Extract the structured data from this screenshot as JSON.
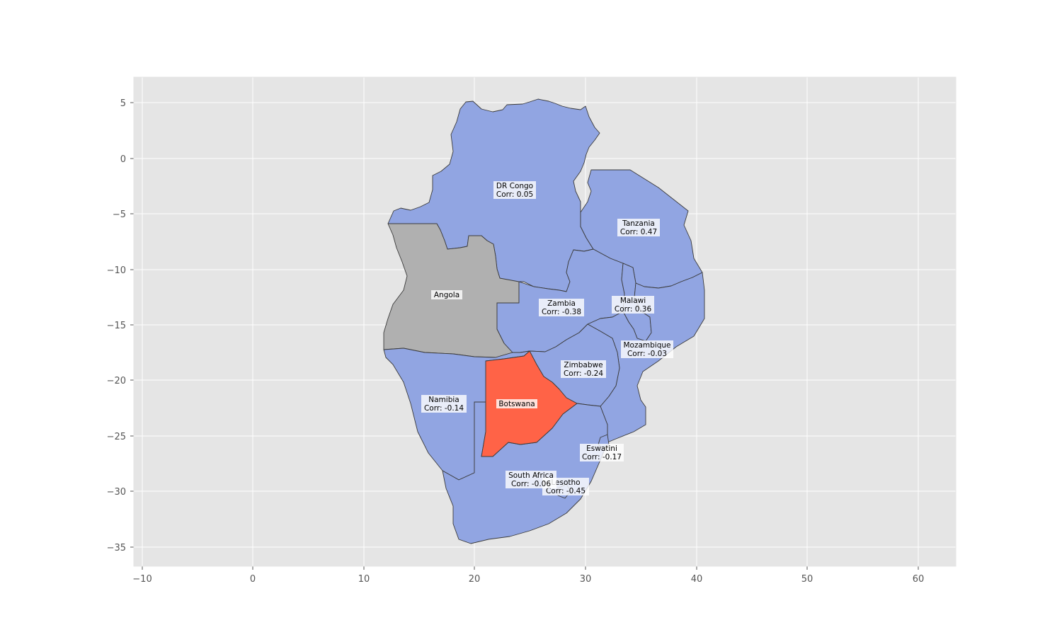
{
  "x_ticks": [
    "−10",
    "0",
    "10",
    "20",
    "30",
    "40",
    "50",
    "60"
  ],
  "y_ticks": [
    "5",
    "0",
    "−5",
    "−10",
    "−15",
    "−20",
    "−25",
    "−30",
    "−35"
  ],
  "colors": {
    "background": "#e5e5e5",
    "grid": "#ffffff",
    "positive_fill": "#91a5e2",
    "no_data_fill": "#b0b0b0",
    "selected_fill": "#ff6347",
    "label_box": "#ffffff"
  },
  "selected_country": "Botswana",
  "countries": [
    {
      "name": "DR Congo",
      "corr": "Corr: 0.05",
      "status": "data"
    },
    {
      "name": "Tanzania",
      "corr": "Corr: 0.47",
      "status": "data"
    },
    {
      "name": "Angola",
      "corr": "",
      "status": "no-data"
    },
    {
      "name": "Zambia",
      "corr": "Corr: -0.38",
      "status": "data"
    },
    {
      "name": "Malawi",
      "corr": "Corr: 0.36",
      "status": "data"
    },
    {
      "name": "Mozambique",
      "corr": "Corr: -0.03",
      "status": "data"
    },
    {
      "name": "Zimbabwe",
      "corr": "Corr: -0.24",
      "status": "data"
    },
    {
      "name": "Namibia",
      "corr": "Corr: -0.14",
      "status": "data"
    },
    {
      "name": "Botswana",
      "corr": "",
      "status": "selected"
    },
    {
      "name": "Eswatini",
      "corr": "Corr: -0.17",
      "status": "data"
    },
    {
      "name": "South Africa",
      "corr": "Corr: -0.06",
      "status": "data"
    },
    {
      "name": "Lesotho",
      "corr": "Corr: -0.45",
      "status": "data"
    }
  ]
}
